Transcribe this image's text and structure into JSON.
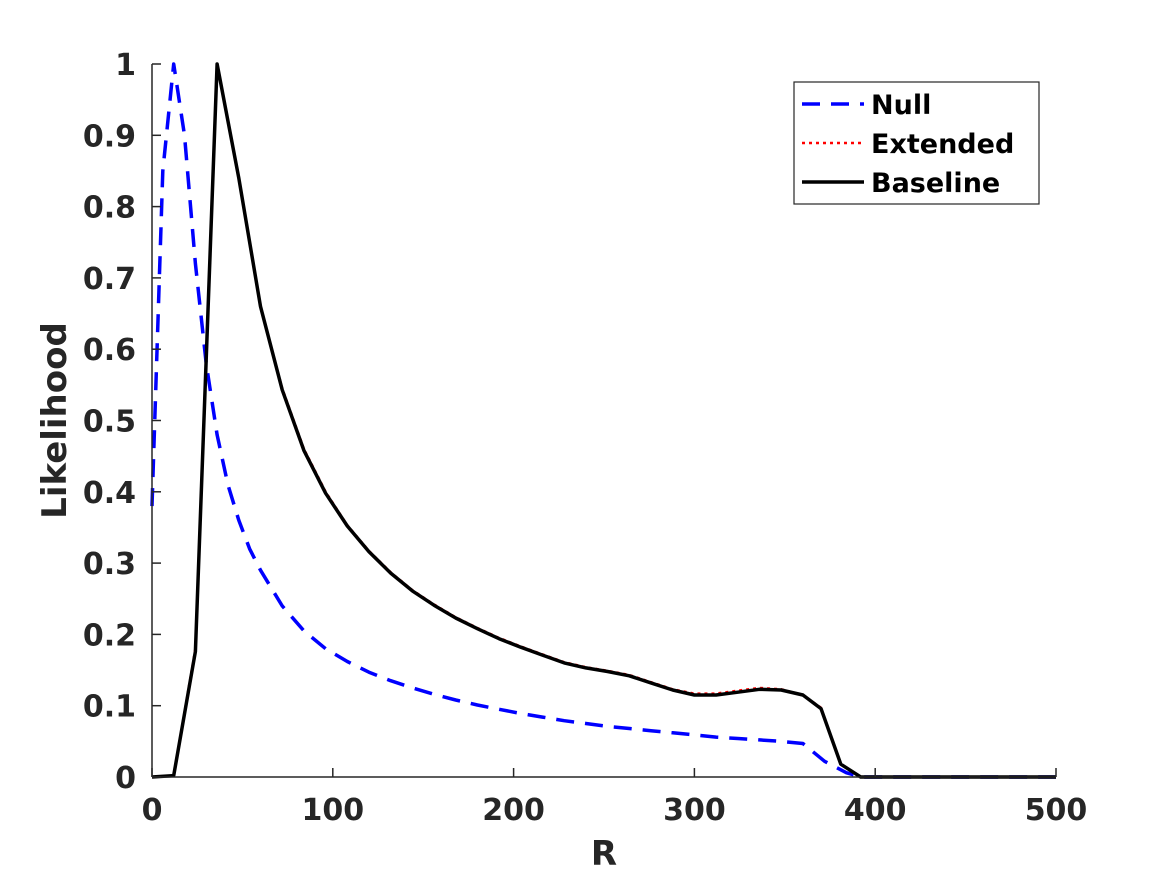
{
  "chart_data": {
    "type": "line",
    "title": "",
    "xlabel": "R",
    "ylabel": "Likelihood",
    "xlim": [
      0,
      500
    ],
    "ylim": [
      0,
      1
    ],
    "xticks": [
      "0",
      "100",
      "200",
      "300",
      "400",
      "500"
    ],
    "yticks": [
      "0",
      "0.1",
      "0.2",
      "0.3",
      "0.4",
      "0.5",
      "0.6",
      "0.7",
      "0.8",
      "0.9",
      "1"
    ],
    "grid": false,
    "legend_position": "top-right",
    "series": [
      {
        "name": "Null",
        "color": "#0000ff",
        "style": "dashed",
        "x": [
          0,
          6,
          12,
          18,
          24,
          30,
          36,
          42,
          48,
          54,
          60,
          72,
          84,
          96,
          108,
          120,
          132,
          144,
          156,
          168,
          180,
          192,
          204,
          216,
          228,
          240,
          252,
          264,
          276,
          288,
          300,
          312,
          324,
          336,
          348,
          360,
          372,
          384,
          392,
          400,
          500
        ],
        "y": [
          0.38,
          0.85,
          1.0,
          0.9,
          0.72,
          0.58,
          0.48,
          0.41,
          0.36,
          0.32,
          0.29,
          0.24,
          0.205,
          0.18,
          0.162,
          0.147,
          0.135,
          0.125,
          0.116,
          0.108,
          0.101,
          0.095,
          0.089,
          0.084,
          0.079,
          0.075,
          0.071,
          0.068,
          0.065,
          0.062,
          0.059,
          0.056,
          0.054,
          0.052,
          0.05,
          0.047,
          0.022,
          0.006,
          0.0,
          0.0,
          0.0
        ]
      },
      {
        "name": "Extended",
        "color": "#ff0000",
        "style": "dotted",
        "x": [
          0,
          12,
          24,
          36,
          48,
          60,
          72,
          84,
          96,
          108,
          120,
          132,
          144,
          156,
          168,
          180,
          192,
          204,
          216,
          228,
          240,
          252,
          264,
          276,
          288,
          300,
          312,
          324,
          336,
          348,
          360,
          370,
          381,
          392,
          500
        ],
        "y": [
          0.0,
          0.002,
          0.18,
          1.0,
          0.84,
          0.66,
          0.545,
          0.46,
          0.4,
          0.353,
          0.317,
          0.287,
          0.262,
          0.242,
          0.224,
          0.209,
          0.195,
          0.183,
          0.172,
          0.161,
          0.154,
          0.149,
          0.143,
          0.133,
          0.123,
          0.117,
          0.117,
          0.121,
          0.125,
          0.123,
          0.115,
          0.097,
          0.018,
          0.0,
          0.0
        ]
      },
      {
        "name": "Baseline",
        "color": "#000000",
        "style": "solid",
        "x": [
          0,
          12,
          24,
          36,
          48,
          60,
          72,
          84,
          96,
          108,
          120,
          132,
          144,
          156,
          168,
          180,
          192,
          204,
          216,
          228,
          240,
          252,
          264,
          276,
          288,
          300,
          312,
          324,
          336,
          348,
          360,
          370,
          381,
          392,
          500
        ],
        "y": [
          0.0,
          0.002,
          0.176,
          1.0,
          0.84,
          0.66,
          0.543,
          0.458,
          0.398,
          0.352,
          0.316,
          0.286,
          0.261,
          0.241,
          0.223,
          0.208,
          0.194,
          0.182,
          0.171,
          0.16,
          0.153,
          0.148,
          0.142,
          0.132,
          0.122,
          0.115,
          0.115,
          0.119,
          0.123,
          0.122,
          0.115,
          0.096,
          0.018,
          0.0,
          0.0
        ]
      }
    ]
  }
}
